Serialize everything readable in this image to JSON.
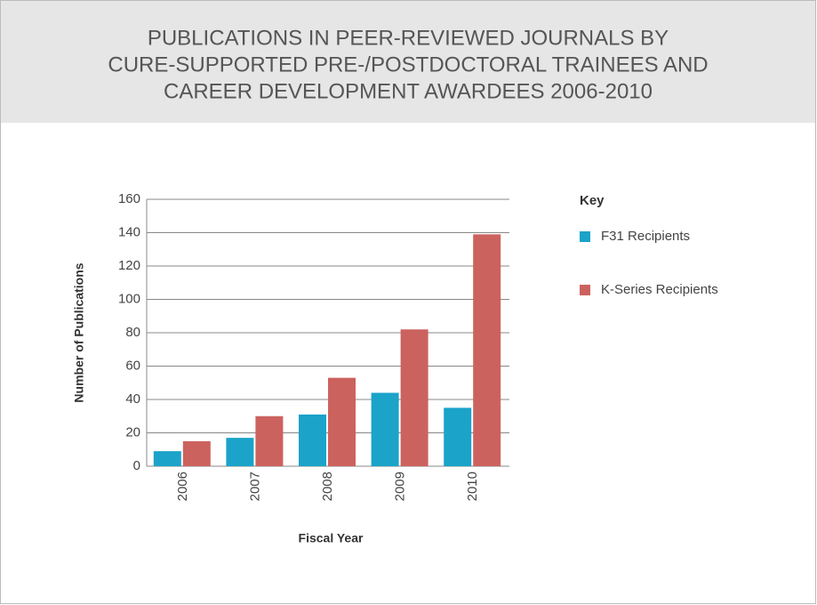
{
  "chart_data": {
    "type": "bar",
    "title": [
      "PUBLICATIONS IN PEER-REVIEWED JOURNALS BY",
      "CURE-SUPPORTED PRE-/POSTDOCTORAL TRAINEES AND",
      "CAREER DEVELOPMENT AWARDEES 2006-2010"
    ],
    "x_label": "Fiscal Year",
    "y_label": "Number of Publications",
    "legend_title": "Key",
    "categories": [
      "2006",
      "2007",
      "2008",
      "2009",
      "2010"
    ],
    "series": [
      {
        "name": "F31 Recipients",
        "color": "#1ba3c9",
        "values": [
          9,
          17,
          31,
          44,
          35
        ]
      },
      {
        "name": "K-Series Recipients",
        "color": "#cc625e",
        "values": [
          15,
          30,
          53,
          82,
          139
        ]
      }
    ],
    "ylim": [
      0,
      160
    ],
    "yticks": [
      0,
      20,
      40,
      60,
      80,
      100,
      120,
      140,
      160
    ],
    "grid": true
  }
}
